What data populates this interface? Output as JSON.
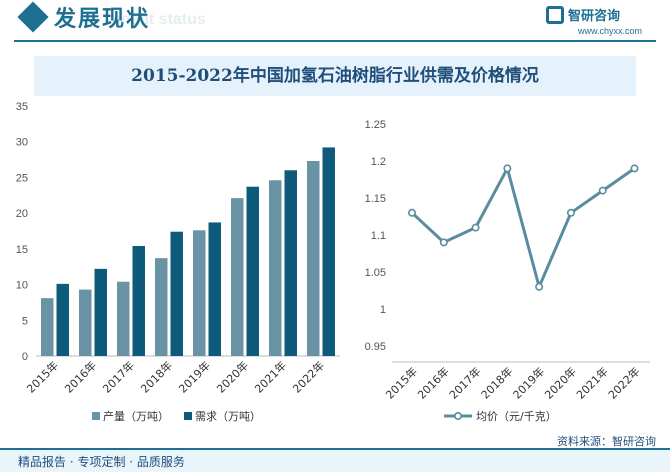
{
  "header": {
    "section_title": "发展现状",
    "section_ghost": "ment status",
    "logo_name": "智研咨询",
    "logo_url": "www.chyxx.com"
  },
  "footer": {
    "tagline": "精品报告 · 专项定制 · 品质服务",
    "source": "资料来源：智研咨询"
  },
  "colors": {
    "brand": "#1f6f93",
    "production": "#6a93a6",
    "demand": "#0d5a7a",
    "price_line": "#5a8ca0"
  },
  "chart_data": [
    {
      "type": "bar",
      "title": "2015-2022年中国加氢石油树脂行业供需及价格情况",
      "categories": [
        "2015年",
        "2016年",
        "2017年",
        "2018年",
        "2019年",
        "2020年",
        "2021年",
        "2022年"
      ],
      "series": [
        {
          "name": "产量（万吨）",
          "values": [
            8.1,
            9.3,
            10.4,
            13.7,
            17.6,
            22.1,
            24.6,
            27.3
          ]
        },
        {
          "name": "需求（万吨）",
          "values": [
            10.1,
            12.2,
            15.4,
            17.4,
            18.7,
            23.7,
            26.0,
            29.2
          ]
        }
      ],
      "ylim": [
        0,
        35
      ],
      "yticks": [
        0,
        5,
        10,
        15,
        20,
        25,
        30,
        35
      ],
      "grid": false,
      "legend": "bottom"
    },
    {
      "type": "line",
      "categories": [
        "2015年",
        "2016年",
        "2017年",
        "2018年",
        "2019年",
        "2020年",
        "2021年",
        "2022年"
      ],
      "series": [
        {
          "name": "均价（元/千克）",
          "values": [
            1.13,
            1.09,
            1.11,
            1.19,
            1.03,
            1.13,
            1.16,
            1.19
          ]
        }
      ],
      "ylim": [
        0.95,
        1.25
      ],
      "yticks": [
        0.95,
        1,
        1.05,
        1.1,
        1.15,
        1.2,
        1.25
      ],
      "grid": false,
      "legend": "bottom"
    }
  ]
}
